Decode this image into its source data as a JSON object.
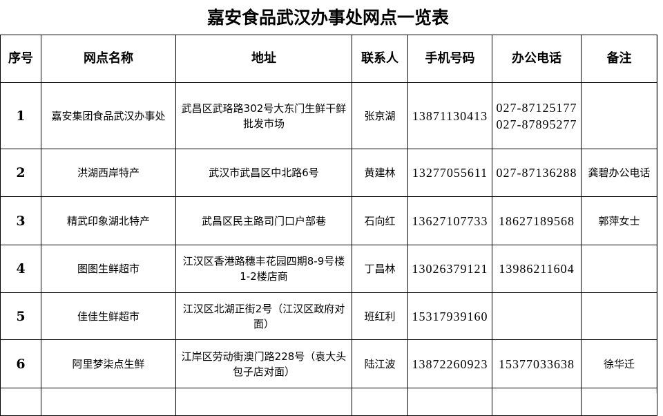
{
  "title": "嘉安食品武汉办事处网点一览表",
  "columns": [
    "序号",
    "网点名称",
    "地址",
    "联系人",
    "手机号码",
    "办公电话",
    "备注"
  ],
  "rows": [
    {
      "no": "1",
      "name": "嘉安集团食品武汉办事处",
      "address": [
        "武昌区武珞路302号大东门生鲜干鲜",
        "批发市场"
      ],
      "contact": "张京湖",
      "mobile": "13871130413",
      "office": [
        "027-87125177",
        "027-87895277"
      ],
      "note": ""
    },
    {
      "no": "2",
      "name": "洪湖西岸特产",
      "address": [
        "武汉市武昌区中北路6号"
      ],
      "contact": "黄建林",
      "mobile": "13277055611",
      "office": [
        "027-87136288"
      ],
      "note": "龚碧办公电话"
    },
    {
      "no": "3",
      "name": "精武印象湖北特产",
      "address": [
        "武昌区民主路司门口户部巷"
      ],
      "contact": "石向红",
      "mobile": "13627107733",
      "office": [
        "18627189568"
      ],
      "note": "郭萍女士"
    },
    {
      "no": "4",
      "name": "图图生鲜超市",
      "address": [
        "江汉区香港路穗丰花园四期8-9号楼",
        "1-2楼店商"
      ],
      "contact": "丁昌林",
      "mobile": "13026379121",
      "office": [
        "13986211604"
      ],
      "note": ""
    },
    {
      "no": "5",
      "name": "佳佳生鲜超市",
      "address": [
        "江汉区北湖正街2号（江汉区政府对",
        "面）"
      ],
      "contact": "班红利",
      "mobile": "15317939160",
      "office": [],
      "note": ""
    },
    {
      "no": "6",
      "name": "阿里梦柒点生鲜",
      "address": [
        "江岸区劳动街澳门路228号（袁大头",
        "包子店对面）"
      ],
      "contact": "陆江波",
      "mobile": "13872260923",
      "office": [
        "15377033638"
      ],
      "note": "徐华迁"
    }
  ]
}
